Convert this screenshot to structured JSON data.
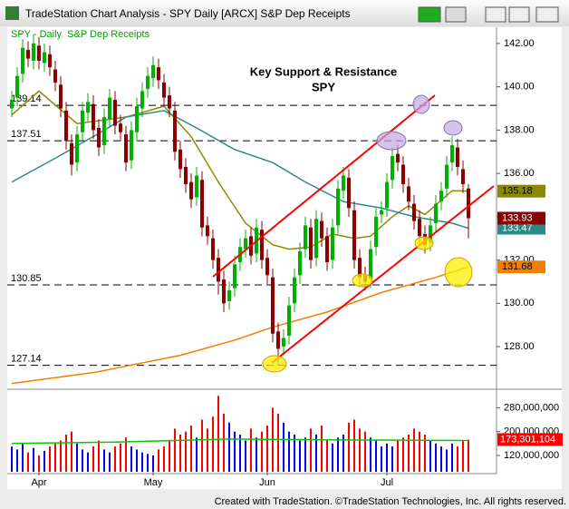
{
  "window_title": "TradeStation Chart Analysis - SPY Daily [ARCX] S&P Dep Receipts",
  "footer": "Created with TradeStation. ©TradeStation Technologies, Inc. All rights reserved.",
  "chart_data": {
    "type": "candlestick",
    "legend_label": "SPY - Daily  S&P Dep Receipts",
    "title": "Key Support & Resistance",
    "subtitle": "SPY",
    "categories": [
      null,
      null,
      null,
      null,
      null,
      "Apr",
      null,
      null,
      null,
      null,
      null,
      null,
      null,
      null,
      null,
      null,
      null,
      null,
      null,
      null,
      null,
      null,
      null,
      null,
      null,
      null,
      "May",
      null,
      null,
      null,
      null,
      null,
      null,
      null,
      null,
      null,
      null,
      null,
      null,
      null,
      null,
      null,
      null,
      null,
      null,
      null,
      null,
      "Jun",
      null,
      null,
      null,
      null,
      null,
      null,
      null,
      null,
      null,
      null,
      null,
      null,
      null,
      null,
      null,
      null,
      null,
      null,
      null,
      null,
      null,
      "Jul",
      null,
      null,
      null,
      null,
      null,
      null,
      null,
      null,
      null,
      null,
      null,
      null,
      null,
      null,
      null
    ],
    "open": [
      139.0,
      139.5,
      140.6,
      141.7,
      141.2,
      141.9,
      141.1,
      141.5,
      140.8,
      140.1,
      138.9,
      137.4,
      136.5,
      137.9,
      138.8,
      139.2,
      138.1,
      137.3,
      138.5,
      139.4,
      138.3,
      137.8,
      136.6,
      137.9,
      139.0,
      139.9,
      140.4,
      140.9,
      140.2,
      139.6,
      138.9,
      137.1,
      136.3,
      135.6,
      134.9,
      135.7,
      133.6,
      133.0,
      132.1,
      131.1,
      130.1,
      130.7,
      131.9,
      132.5,
      133.1,
      132.3,
      133.4,
      132.1,
      131.2,
      128.7,
      128.0,
      128.5,
      130.0,
      131.3,
      132.5,
      133.5,
      132.1,
      133.8,
      133.1,
      132.0,
      133.6,
      135.2,
      135.8,
      134.3,
      132.1,
      131.3,
      131.1,
      132.6,
      134.1,
      134.4,
      135.7,
      136.9,
      136.4,
      135.4,
      134.6,
      133.9,
      133.2,
      132.8,
      133.7,
      134.7,
      135.3,
      136.5,
      137.2,
      136.2,
      135.3
    ],
    "high": [
      139.8,
      140.9,
      142.2,
      142.1,
      142.4,
      142.3,
      142.0,
      141.9,
      141.2,
      140.5,
      139.3,
      137.8,
      138.2,
      139.3,
      139.7,
      139.6,
      138.5,
      139.0,
      139.9,
      139.8,
      138.7,
      138.2,
      138.4,
      139.5,
      140.2,
      140.9,
      141.4,
      141.3,
      140.6,
      140.0,
      139.3,
      137.5,
      136.7,
      136.0,
      136.3,
      136.1,
      134.0,
      133.4,
      132.5,
      131.5,
      131.0,
      132.2,
      133.0,
      133.4,
      133.5,
      133.9,
      133.8,
      132.5,
      131.6,
      129.1,
      128.8,
      130.3,
      131.6,
      132.8,
      134.0,
      133.9,
      134.3,
      134.2,
      133.5,
      133.9,
      135.7,
      136.3,
      136.2,
      134.7,
      132.5,
      131.7,
      132.9,
      134.4,
      134.7,
      136.0,
      137.2,
      137.3,
      136.8,
      135.8,
      135.0,
      134.3,
      133.6,
      134.0,
      135.0,
      135.6,
      136.8,
      137.7,
      137.6,
      136.6,
      135.5
    ],
    "low": [
      138.6,
      139.1,
      140.2,
      140.9,
      140.8,
      140.8,
      140.7,
      140.5,
      139.8,
      138.6,
      137.1,
      135.9,
      136.1,
      137.5,
      138.4,
      137.6,
      136.8,
      136.9,
      138.1,
      137.8,
      137.5,
      136.1,
      136.2,
      137.5,
      138.6,
      139.5,
      140.0,
      139.9,
      139.1,
      138.6,
      136.6,
      135.8,
      135.1,
      134.4,
      134.5,
      133.1,
      132.7,
      131.6,
      130.4,
      129.6,
      129.7,
      130.3,
      131.5,
      132.1,
      131.8,
      131.9,
      131.6,
      130.9,
      128.2,
      127.14,
      127.6,
      128.1,
      129.6,
      130.9,
      132.1,
      131.6,
      131.7,
      132.6,
      131.5,
      131.6,
      133.2,
      134.8,
      134.0,
      131.6,
      130.8,
      130.6,
      130.7,
      132.2,
      133.7,
      134.0,
      135.3,
      136.1,
      135.1,
      134.3,
      133.4,
      132.7,
      132.3,
      132.4,
      133.3,
      134.3,
      134.9,
      136.1,
      135.9,
      135.1,
      133.0
    ],
    "close": [
      139.4,
      140.5,
      141.8,
      141.3,
      142.0,
      141.2,
      141.6,
      140.9,
      140.2,
      139.0,
      137.5,
      136.4,
      137.8,
      138.9,
      139.3,
      138.0,
      137.2,
      138.6,
      139.5,
      138.2,
      137.9,
      136.5,
      138.0,
      139.1,
      139.8,
      140.5,
      141.0,
      140.3,
      139.5,
      139.0,
      137.0,
      136.2,
      135.5,
      134.8,
      135.9,
      133.5,
      133.1,
      132.0,
      131.0,
      130.0,
      130.6,
      131.8,
      132.6,
      133.0,
      132.2,
      133.5,
      132.0,
      131.3,
      128.6,
      127.9,
      128.4,
      129.9,
      131.2,
      132.4,
      133.6,
      132.0,
      133.9,
      133.0,
      131.9,
      133.5,
      135.3,
      135.9,
      134.4,
      132.0,
      131.2,
      131.0,
      132.5,
      134.0,
      134.3,
      135.6,
      136.8,
      136.5,
      135.5,
      134.7,
      133.8,
      133.1,
      132.7,
      133.6,
      134.6,
      135.2,
      136.4,
      137.3,
      136.3,
      135.5,
      133.93
    ],
    "up_color": "#00b000",
    "down_color": "#8b0000",
    "ylim": [
      126.2,
      142.75
    ],
    "yticks": [
      {
        "value": 128,
        "label": "128.00"
      },
      {
        "value": 130,
        "label": "130.00"
      },
      {
        "value": 132,
        "label": "132.00"
      },
      {
        "value": 134,
        "label": "134.00"
      },
      {
        "value": 136,
        "label": "136.00"
      },
      {
        "value": 138,
        "label": "138.00"
      },
      {
        "value": 140,
        "label": "140.00"
      },
      {
        "value": 142,
        "label": "142.00"
      }
    ],
    "levels": [
      139.14,
      137.51,
      130.85,
      127.14
    ],
    "moving_averages": [
      {
        "color": "#8a8a00",
        "x": [
          0,
          5,
          12,
          21,
          28,
          33,
          38,
          43,
          48,
          51,
          55,
          59,
          63,
          66,
          70,
          73,
          76,
          81,
          84
        ],
        "values": [
          138.7,
          139.8,
          138.3,
          138.6,
          139.1,
          137.7,
          135.6,
          133.7,
          132.7,
          132.5,
          132.6,
          133.2,
          133.0,
          133.1,
          134.0,
          134.5,
          134.1,
          135.2,
          135.18
        ]
      },
      {
        "color": "#2a8a8a",
        "x": [
          0,
          8,
          15,
          21,
          28,
          34,
          41,
          48,
          54,
          61,
          68,
          74,
          81,
          84
        ],
        "values": [
          135.6,
          136.7,
          137.7,
          138.6,
          138.9,
          138.1,
          137.1,
          136.5,
          135.6,
          134.7,
          134.4,
          134.0,
          133.7,
          133.47
        ]
      },
      {
        "color": "#f08000",
        "x": [
          0,
          15,
          31,
          41,
          48,
          58,
          68,
          78,
          84
        ],
        "values": [
          126.3,
          126.8,
          127.6,
          128.3,
          128.9,
          129.6,
          130.5,
          131.2,
          131.68
        ]
      }
    ],
    "volume": {
      "values": [
        150000000,
        140000000,
        160000000,
        130000000,
        145000000,
        120000000,
        135000000,
        150000000,
        160000000,
        170000000,
        190000000,
        200000000,
        160000000,
        140000000,
        130000000,
        150000000,
        170000000,
        140000000,
        130000000,
        150000000,
        160000000,
        180000000,
        150000000,
        140000000,
        130000000,
        125000000,
        120000000,
        140000000,
        150000000,
        170000000,
        210000000,
        190000000,
        200000000,
        220000000,
        180000000,
        240000000,
        210000000,
        250000000,
        320000000,
        260000000,
        230000000,
        200000000,
        190000000,
        170000000,
        210000000,
        180000000,
        200000000,
        220000000,
        280000000,
        260000000,
        230000000,
        200000000,
        190000000,
        170000000,
        180000000,
        210000000,
        190000000,
        220000000,
        170000000,
        160000000,
        180000000,
        190000000,
        230000000,
        240000000,
        210000000,
        200000000,
        180000000,
        170000000,
        150000000,
        160000000,
        150000000,
        170000000,
        180000000,
        190000000,
        210000000,
        200000000,
        190000000,
        170000000,
        160000000,
        150000000,
        140000000,
        160000000,
        150000000,
        170000000,
        173301104
      ],
      "last_label": "173,301,104",
      "up_color": "#0000ff",
      "down_color": "#ff0000",
      "ylim": [
        65000000,
        330000000
      ],
      "yticks": [
        {
          "value": 120000000,
          "label": "120,000,000"
        },
        {
          "value": 200000000,
          "label": "200,000,000"
        },
        {
          "value": 280000000,
          "label": "280,000,000"
        }
      ],
      "average": {
        "color": "#00cc00",
        "x": [
          0,
          20,
          40,
          60,
          84
        ],
        "values": [
          160000000,
          165000000,
          175000000,
          172000000,
          170000000
        ]
      }
    }
  }
}
